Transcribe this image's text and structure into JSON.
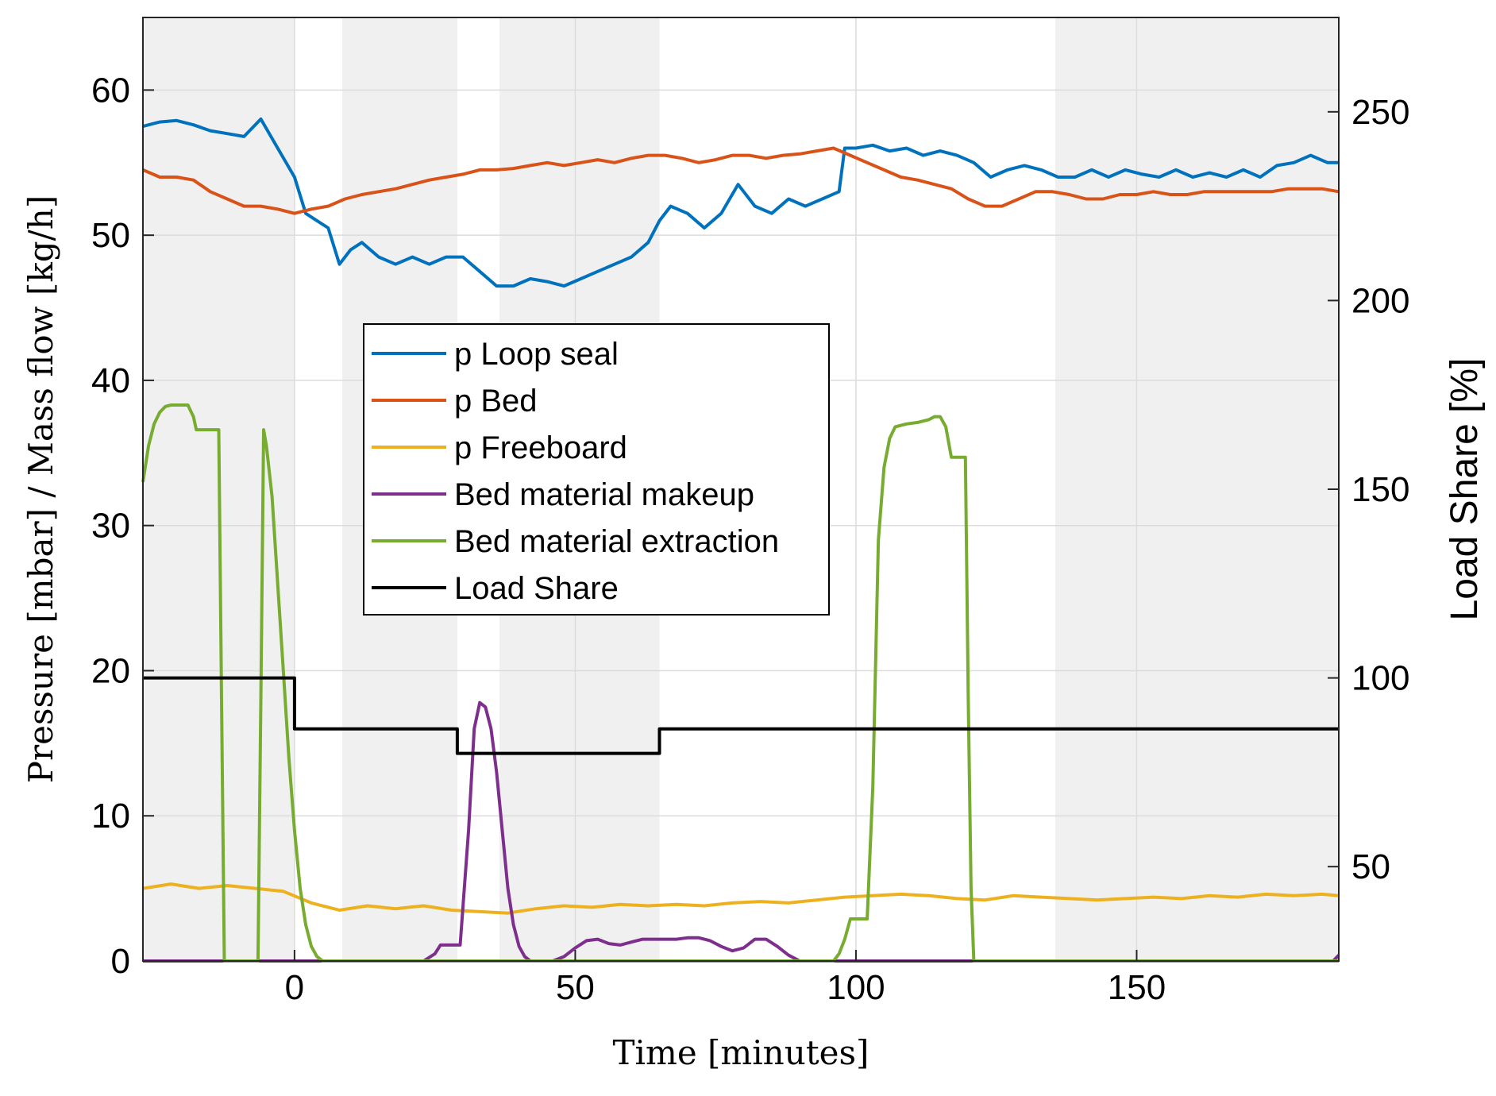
{
  "chart_data": {
    "type": "line",
    "title": "",
    "xlabel": "Time [minutes]",
    "ylabel_left": "Pressure [mbar] / Mass flow [kg/h]",
    "ylabel_right": "Load Share [%]",
    "xlim": [
      -27,
      186
    ],
    "ylim_left": [
      0,
      65
    ],
    "ylim_right": [
      25,
      275
    ],
    "xticks": [
      0,
      50,
      100,
      150
    ],
    "xtick_labels": [
      "0",
      "50",
      "100",
      "150"
    ],
    "yticks_left": [
      0,
      10,
      20,
      30,
      40,
      50,
      60
    ],
    "ytick_labels_left": [
      "0",
      "10",
      "20",
      "30",
      "40",
      "50",
      "60"
    ],
    "yticks_right": [
      50,
      100,
      150,
      200,
      250
    ],
    "ytick_labels_right": [
      "50",
      "100",
      "150",
      "200",
      "250"
    ],
    "grid": true,
    "legend_position": "center-left",
    "shaded_regions_x": [
      [
        -27,
        0
      ],
      [
        8.5,
        29
      ],
      [
        36.5,
        65
      ],
      [
        135.5,
        186
      ]
    ],
    "series": [
      {
        "name": "p Loop seal",
        "axis": "left",
        "color": "#0072BD",
        "x": [
          -27,
          -24,
          -21,
          -18,
          -15,
          -12,
          -9,
          -6,
          -3,
          0,
          2,
          4,
          6,
          8,
          10,
          12,
          15,
          18,
          21,
          24,
          27,
          30,
          33,
          36,
          39,
          42,
          45,
          48,
          51,
          54,
          57,
          60,
          63,
          65,
          67,
          70,
          73,
          76,
          79,
          82,
          85,
          88,
          91,
          94,
          97,
          98,
          100,
          103,
          106,
          109,
          112,
          115,
          118,
          121,
          124,
          127,
          130,
          133,
          136,
          139,
          142,
          145,
          148,
          151,
          154,
          157,
          160,
          163,
          166,
          169,
          172,
          175,
          178,
          181,
          184,
          186
        ],
        "values": [
          57.5,
          57.8,
          57.9,
          57.6,
          57.2,
          57.0,
          56.8,
          58.0,
          56.0,
          54.0,
          51.5,
          51.0,
          50.5,
          48.0,
          49.0,
          49.5,
          48.5,
          48.0,
          48.5,
          48.0,
          48.5,
          48.5,
          47.5,
          46.5,
          46.5,
          47.0,
          46.8,
          46.5,
          47.0,
          47.5,
          48.0,
          48.5,
          49.5,
          51.0,
          52.0,
          51.5,
          50.5,
          51.5,
          53.5,
          52.0,
          51.5,
          52.5,
          52.0,
          52.5,
          53.0,
          56.0,
          56.0,
          56.2,
          55.8,
          56.0,
          55.5,
          55.8,
          55.5,
          55.0,
          54.0,
          54.5,
          54.8,
          54.5,
          54.0,
          54.0,
          54.5,
          54.0,
          54.5,
          54.2,
          54.0,
          54.5,
          54.0,
          54.3,
          54.0,
          54.5,
          54.0,
          54.8,
          55.0,
          55.5,
          55.0,
          55.0
        ]
      },
      {
        "name": "p Bed",
        "axis": "left",
        "color": "#D95319",
        "x": [
          -27,
          -24,
          -21,
          -18,
          -15,
          -12,
          -9,
          -6,
          -3,
          0,
          3,
          6,
          9,
          12,
          15,
          18,
          21,
          24,
          27,
          30,
          33,
          36,
          39,
          42,
          45,
          48,
          51,
          54,
          57,
          60,
          63,
          66,
          69,
          72,
          75,
          78,
          81,
          84,
          87,
          90,
          93,
          96,
          99,
          102,
          105,
          108,
          111,
          114,
          117,
          120,
          123,
          126,
          129,
          132,
          135,
          138,
          141,
          144,
          147,
          150,
          153,
          156,
          159,
          162,
          165,
          168,
          171,
          174,
          177,
          180,
          183,
          186
        ],
        "values": [
          54.5,
          54.0,
          54.0,
          53.8,
          53.0,
          52.5,
          52.0,
          52.0,
          51.8,
          51.5,
          51.8,
          52.0,
          52.5,
          52.8,
          53.0,
          53.2,
          53.5,
          53.8,
          54.0,
          54.2,
          54.5,
          54.5,
          54.6,
          54.8,
          55.0,
          54.8,
          55.0,
          55.2,
          55.0,
          55.3,
          55.5,
          55.5,
          55.3,
          55.0,
          55.2,
          55.5,
          55.5,
          55.3,
          55.5,
          55.6,
          55.8,
          56.0,
          55.5,
          55.0,
          54.5,
          54.0,
          53.8,
          53.5,
          53.2,
          52.5,
          52.0,
          52.0,
          52.5,
          53.0,
          53.0,
          52.8,
          52.5,
          52.5,
          52.8,
          52.8,
          53.0,
          52.8,
          52.8,
          53.0,
          53.0,
          53.0,
          53.0,
          53.0,
          53.2,
          53.2,
          53.2,
          53.0
        ]
      },
      {
        "name": "p Freeboard",
        "axis": "left",
        "color": "#EDB120",
        "x": [
          -27,
          -22,
          -17,
          -12,
          -7,
          -2,
          3,
          8,
          13,
          18,
          23,
          28,
          33,
          38,
          43,
          48,
          53,
          58,
          63,
          68,
          73,
          78,
          83,
          88,
          93,
          98,
          103,
          108,
          113,
          118,
          123,
          128,
          133,
          138,
          143,
          148,
          153,
          158,
          163,
          168,
          173,
          178,
          183,
          186
        ],
        "values": [
          5.0,
          5.3,
          5.0,
          5.2,
          5.0,
          4.8,
          4.0,
          3.5,
          3.8,
          3.6,
          3.8,
          3.5,
          3.4,
          3.3,
          3.6,
          3.8,
          3.7,
          3.9,
          3.8,
          3.9,
          3.8,
          4.0,
          4.1,
          4.0,
          4.2,
          4.4,
          4.5,
          4.6,
          4.5,
          4.3,
          4.2,
          4.5,
          4.4,
          4.3,
          4.2,
          4.3,
          4.4,
          4.3,
          4.5,
          4.4,
          4.6,
          4.5,
          4.6,
          4.5
        ]
      },
      {
        "name": "Bed material makeup",
        "axis": "left",
        "color": "#7E2F8E",
        "x": [
          -27,
          23,
          25,
          26,
          29,
          29.5,
          31,
          32,
          33,
          34,
          35,
          36,
          37,
          38,
          39,
          40,
          41,
          42,
          44,
          46,
          48,
          50,
          52,
          54,
          56,
          58,
          60,
          62,
          64,
          66,
          68,
          70,
          72,
          74,
          76,
          78,
          80,
          82,
          84,
          86,
          88,
          90,
          92,
          185,
          186
        ],
        "values": [
          0,
          0,
          0.5,
          1.1,
          1.1,
          1.1,
          9.0,
          16.0,
          17.8,
          17.5,
          16.0,
          13.0,
          9.0,
          5.0,
          2.5,
          1.0,
          0.3,
          0,
          0,
          0,
          0.3,
          0.9,
          1.4,
          1.5,
          1.2,
          1.1,
          1.3,
          1.5,
          1.5,
          1.5,
          1.5,
          1.6,
          1.6,
          1.4,
          1.0,
          0.7,
          0.9,
          1.5,
          1.5,
          1.0,
          0.4,
          0,
          0,
          0,
          0.4
        ]
      },
      {
        "name": "Bed material extraction",
        "axis": "left",
        "color": "#77AC30",
        "x": [
          -27,
          -26,
          -25,
          -24,
          -23,
          -22,
          -21,
          -20,
          -19,
          -18,
          -17.5,
          -17,
          -13.5,
          -13,
          -12.5,
          -6.5,
          -6,
          -5.5,
          -5,
          -4,
          -3,
          -2,
          -1,
          0,
          1,
          2,
          3,
          4,
          5,
          6,
          7,
          8,
          96,
          97,
          98,
          99,
          101,
          102,
          103,
          104,
          105,
          106,
          107,
          109,
          111,
          113,
          114,
          115,
          116,
          117,
          119,
          119.5,
          120,
          120.5,
          121,
          186
        ],
        "values": [
          33,
          35.5,
          37,
          37.8,
          38.2,
          38.3,
          38.3,
          38.3,
          38.3,
          37.5,
          36.6,
          36.6,
          36.6,
          18,
          0,
          0,
          18,
          36.6,
          35.5,
          32,
          26,
          20,
          14,
          9,
          5,
          2.5,
          1,
          0.3,
          0,
          0,
          0,
          0,
          0,
          0.5,
          1.5,
          2.9,
          2.9,
          2.9,
          12,
          29,
          34,
          36,
          36.8,
          37.0,
          37.1,
          37.3,
          37.5,
          37.5,
          36.8,
          34.7,
          34.7,
          34.7,
          18,
          5,
          0,
          0
        ]
      },
      {
        "name": "Load Share",
        "axis": "right",
        "color": "#000000",
        "x": [
          -27,
          0,
          0,
          29,
          29,
          65,
          65,
          186
        ],
        "values": [
          100,
          100,
          86.5,
          86.5,
          80,
          80,
          86.5,
          86.5
        ]
      }
    ]
  }
}
